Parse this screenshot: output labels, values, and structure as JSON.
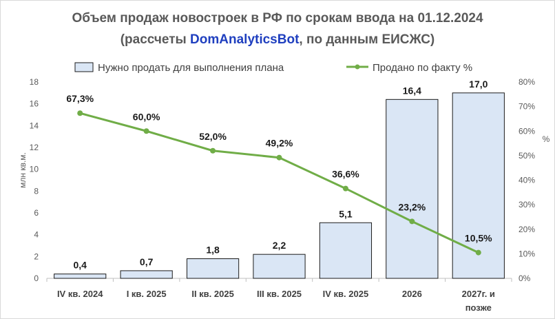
{
  "title": {
    "line1": "Объем продаж новостроек в РФ по срокам ввода  на 01.12.2024",
    "line2_prefix": "(рассчеты ",
    "line2_brand": "DomAnalyticsBot",
    "line2_suffix": ", по данным ЕИСЖС)"
  },
  "colors": {
    "bar_fill": "#dae6f5",
    "bar_stroke": "#1a1a1a",
    "line": "#70ad47",
    "brand": "#1f3fbf",
    "grid": "#d9d9d9"
  },
  "chart_data": {
    "type": "bar+line",
    "categories": [
      "IV кв. 2024",
      "I кв. 2025",
      "II кв. 2025",
      "III кв. 2025",
      "IV кв. 2025",
      "2026",
      "2027г. и позже"
    ],
    "category_lines": [
      [
        "IV кв. 2024"
      ],
      [
        "I кв. 2025"
      ],
      [
        "II кв. 2025"
      ],
      [
        "III кв. 2025"
      ],
      [
        "IV кв. 2025"
      ],
      [
        "2026"
      ],
      [
        "2027г. и",
        "позже"
      ]
    ],
    "series": [
      {
        "name": "Нужно продать для выполнения плана",
        "kind": "bar",
        "axis": "left",
        "values": [
          0.4,
          0.7,
          1.8,
          2.2,
          5.1,
          16.4,
          17.0
        ],
        "labels": [
          "0,4",
          "0,7",
          "1,8",
          "2,2",
          "5,1",
          "16,4",
          "17,0"
        ]
      },
      {
        "name": "Продано по факту %",
        "kind": "line",
        "axis": "right",
        "values": [
          67.3,
          60.0,
          52.0,
          49.2,
          36.6,
          23.2,
          10.5
        ],
        "labels": [
          "67,3%",
          "60,0%",
          "52,0%",
          "49,2%",
          "36,6%",
          "23,2%",
          "10,5%"
        ]
      }
    ],
    "y_left": {
      "label": "млн кв.м.",
      "lim": [
        0,
        18
      ],
      "ticks": [
        "0",
        "2",
        "4",
        "6",
        "8",
        "10",
        "12",
        "14",
        "16",
        "18"
      ]
    },
    "y_right": {
      "label": "%",
      "lim": [
        0,
        80
      ],
      "ticks": [
        "0%",
        "10%",
        "20%",
        "30%",
        "40%",
        "50%",
        "60%",
        "70%",
        "80%"
      ]
    },
    "legend": "top",
    "grid": false
  }
}
